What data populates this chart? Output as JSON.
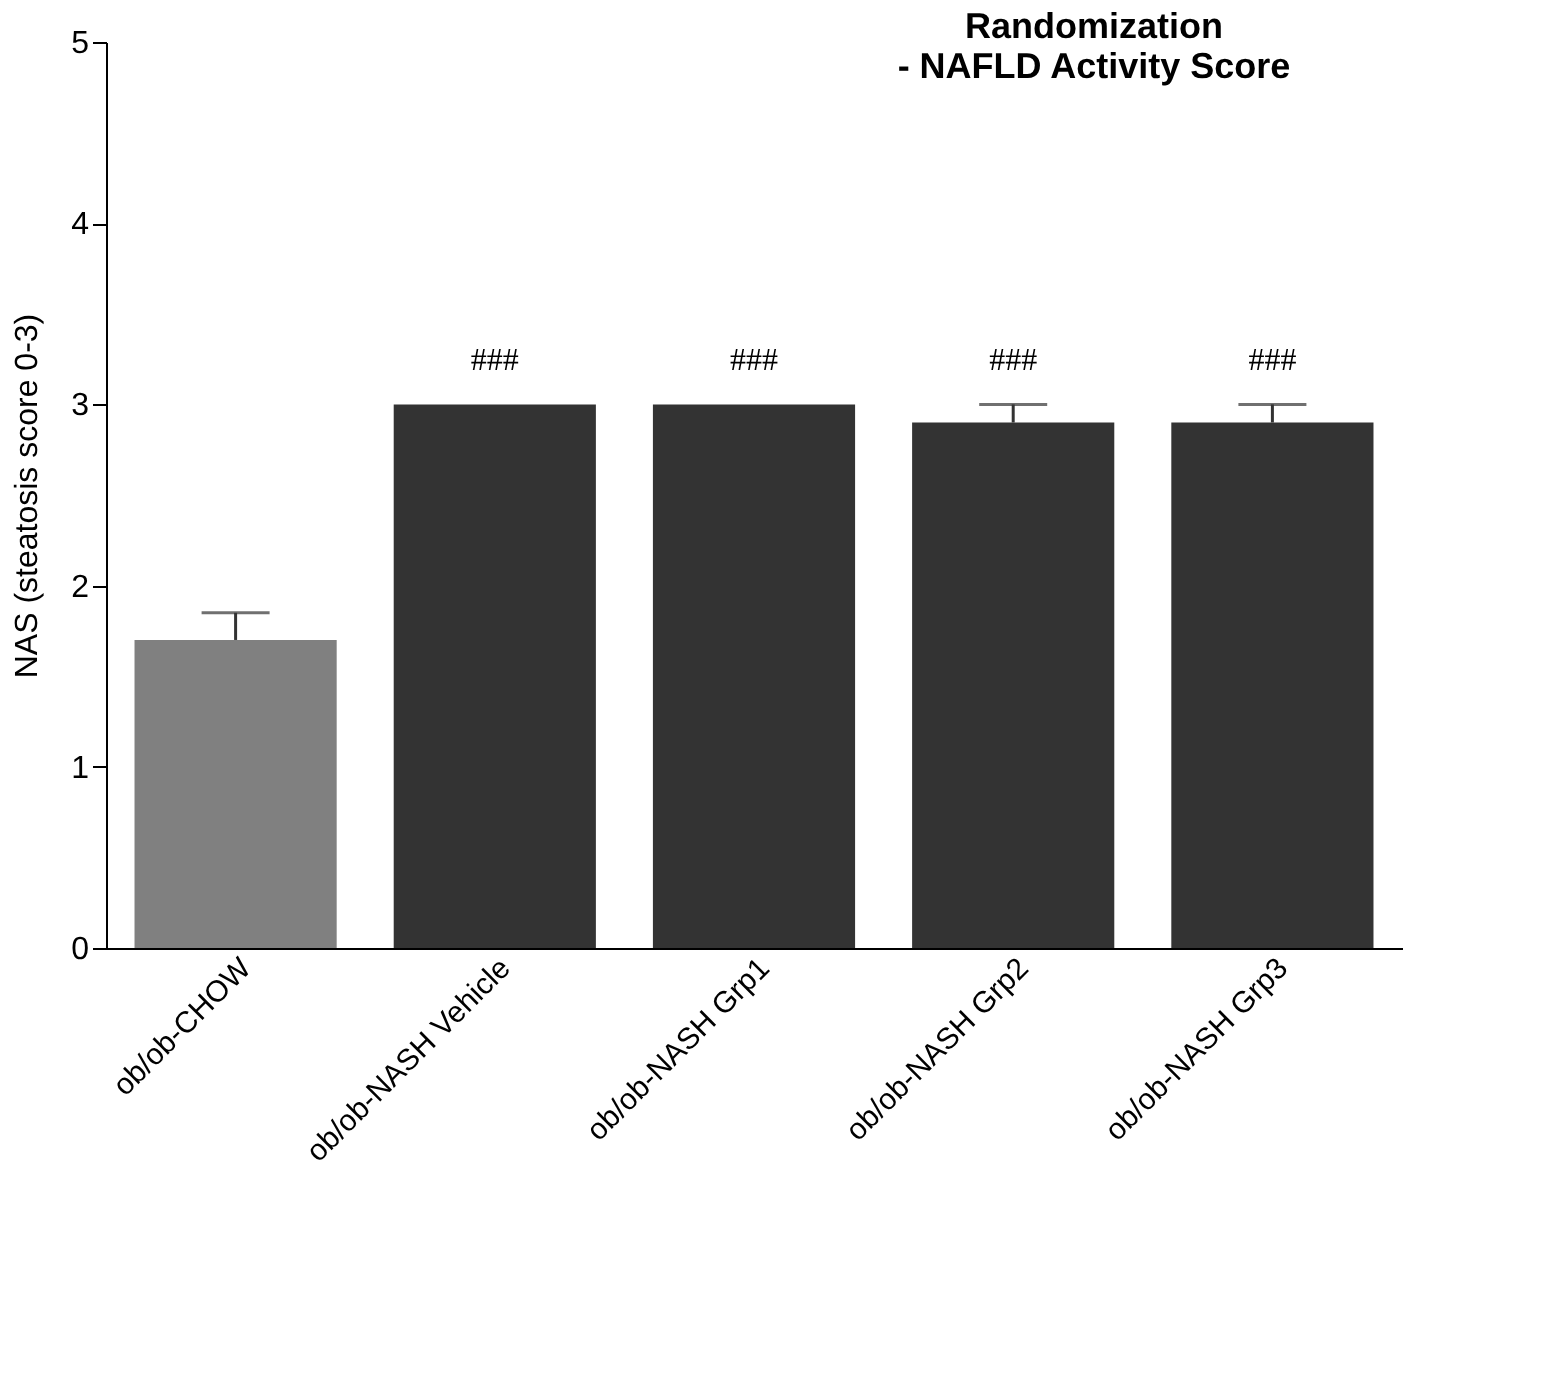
{
  "chart_data": {
    "type": "bar",
    "title": [
      "Randomization",
      "- NAFLD Activity Score"
    ],
    "ylabel": "NAS (steatosis score 0-3)",
    "categories": [
      "ob/ob-CHOW",
      "ob/ob-NASH Vehicle",
      "ob/ob-NASH Grp1",
      "ob/ob-NASH Grp2",
      "ob/ob-NASH Grp3"
    ],
    "values": [
      1.7,
      3.0,
      3.0,
      2.9,
      2.9
    ],
    "colors": [
      "#808080",
      "#333333",
      "#333333",
      "#333333",
      "#333333"
    ],
    "errors": [
      [
        1.7,
        1.85
      ],
      null,
      null,
      [
        2.9,
        3.0
      ],
      [
        2.9,
        3.0
      ]
    ],
    "annotations": [
      {
        "text": "###",
        "x": "ob/ob-NASH Vehicle",
        "y": 3.0
      },
      {
        "text": "###",
        "x": "ob/ob-NASH Grp1",
        "y": 3.0
      },
      {
        "text": "###",
        "x": "ob/ob-NASH Grp2",
        "y": 3.0
      },
      {
        "text": "###",
        "x": "ob/ob-NASH Grp3",
        "y": 3.0
      }
    ],
    "ylim": [
      0,
      5
    ],
    "yticks": [
      0,
      1,
      2,
      3,
      4,
      5
    ],
    "grid": false
  }
}
